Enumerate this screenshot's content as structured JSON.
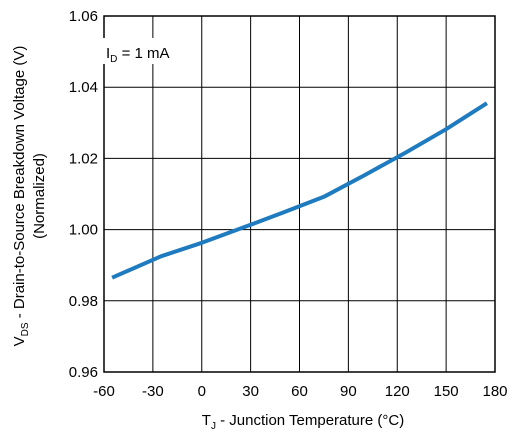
{
  "chart_data": {
    "type": "line",
    "title": "",
    "annotation": {
      "main": "I",
      "sub": "D",
      "rest": " = 1 mA"
    },
    "xlabel": {
      "main": "T",
      "sub": "J",
      "rest": " - Junction Temperature (°C)"
    },
    "ylabel": {
      "line1_main": "V",
      "line1_sub": "DS",
      "line1_rest": " - Drain-to-Source Breakdown Voltage (V)",
      "line2": "(Normalized)"
    },
    "xlim": [
      -60,
      180
    ],
    "ylim": [
      0.96,
      1.06
    ],
    "xticks": [
      -60,
      -30,
      0,
      30,
      60,
      90,
      120,
      150,
      180
    ],
    "xtick_labels": [
      "-60",
      "-30",
      "0",
      "30",
      "60",
      "90",
      "120",
      "150",
      "180"
    ],
    "yticks": [
      0.96,
      0.98,
      1.0,
      1.02,
      1.04,
      1.06
    ],
    "ytick_labels": [
      "0.96",
      "0.98",
      "1.00",
      "1.02",
      "1.04",
      "1.06"
    ],
    "grid": true,
    "series": [
      {
        "color": "#1f7bbf",
        "x": [
          -55,
          -25,
          0,
          25,
          50,
          75,
          100,
          125,
          150,
          175
        ],
        "y": [
          0.9865,
          0.9925,
          0.9963,
          1.0005,
          1.0048,
          1.0092,
          1.0153,
          1.0216,
          1.0282,
          1.0355
        ]
      }
    ]
  }
}
